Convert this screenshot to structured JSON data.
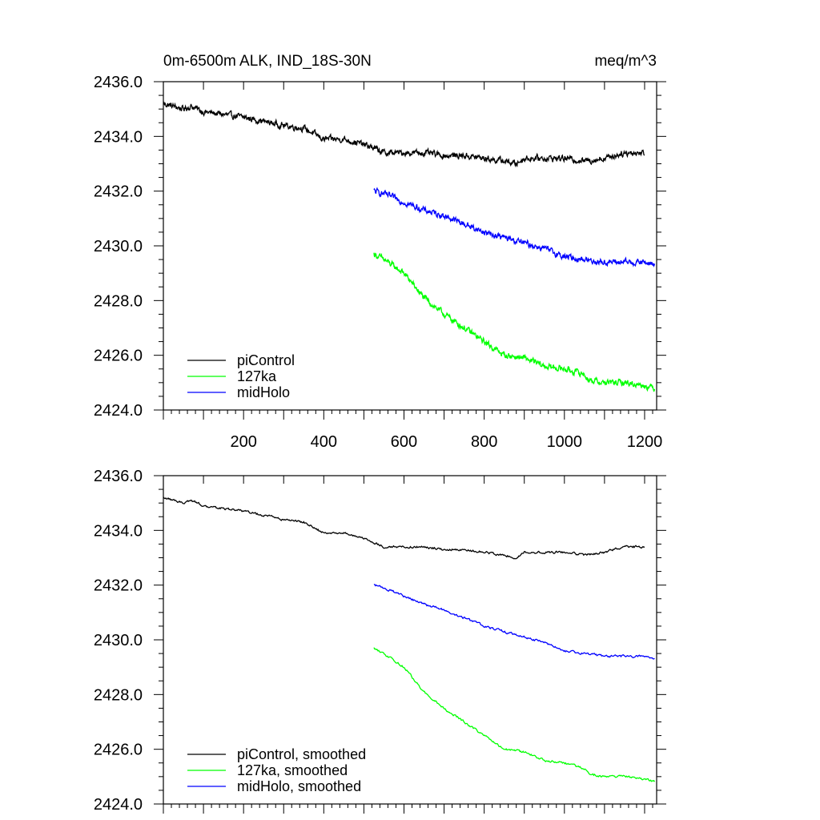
{
  "chart_data": [
    {
      "type": "line",
      "title": "0m-6500m ALK, IND_18S-30N",
      "units": "meq/m^3",
      "xlabel": "",
      "ylabel": "",
      "xlim": [
        0,
        1230
      ],
      "ylim": [
        2424.0,
        2436.0
      ],
      "xticks": [
        "200",
        "400",
        "600",
        "800",
        "1000",
        "1200"
      ],
      "yticks": [
        "2424.0",
        "2426.0",
        "2428.0",
        "2430.0",
        "2432.0",
        "2434.0",
        "2436.0"
      ],
      "grid": false,
      "legend_position": "bottom-left",
      "series": [
        {
          "name": "piControl",
          "color": "#000000",
          "x": [
            0,
            50,
            70,
            100,
            200,
            300,
            350,
            400,
            450,
            500,
            520,
            550,
            600,
            650,
            700,
            750,
            800,
            850,
            880,
            900,
            950,
            1000,
            1050,
            1100,
            1150,
            1200
          ],
          "y": [
            2435.2,
            2435.0,
            2435.1,
            2434.9,
            2434.7,
            2434.4,
            2434.3,
            2433.9,
            2433.9,
            2433.7,
            2433.6,
            2433.4,
            2433.4,
            2433.4,
            2433.3,
            2433.3,
            2433.2,
            2433.1,
            2433.0,
            2433.2,
            2433.2,
            2433.2,
            2433.1,
            2433.2,
            2433.4,
            2433.4
          ]
        },
        {
          "name": "127ka",
          "color": "#00ff00",
          "x": [
            525,
            550,
            600,
            650,
            700,
            750,
            800,
            850,
            900,
            950,
            1000,
            1050,
            1060,
            1100,
            1150,
            1200,
            1225
          ],
          "y": [
            2429.7,
            2429.5,
            2429.0,
            2428.1,
            2427.5,
            2427.0,
            2426.5,
            2426.0,
            2425.9,
            2425.6,
            2425.5,
            2425.3,
            2425.1,
            2425.0,
            2425.0,
            2424.9,
            2424.8
          ]
        },
        {
          "name": "midHolo",
          "color": "#0000ff",
          "x": [
            525,
            550,
            600,
            650,
            700,
            750,
            800,
            850,
            900,
            950,
            1000,
            1050,
            1100,
            1150,
            1200,
            1225
          ],
          "y": [
            2432.0,
            2431.9,
            2431.6,
            2431.3,
            2431.1,
            2430.8,
            2430.5,
            2430.3,
            2430.1,
            2429.9,
            2429.6,
            2429.5,
            2429.4,
            2429.4,
            2429.4,
            2429.3
          ]
        }
      ]
    },
    {
      "type": "line",
      "title": "",
      "xlabel": "",
      "ylabel": "",
      "xlim": [
        0,
        1230
      ],
      "ylim": [
        2424.0,
        2436.0
      ],
      "yticks": [
        "2424.0",
        "2426.0",
        "2428.0",
        "2430.0",
        "2432.0",
        "2434.0",
        "2436.0"
      ],
      "grid": false,
      "legend_position": "bottom-left",
      "series": [
        {
          "name": "piControl, smoothed",
          "color": "#000000",
          "x": [
            0,
            50,
            70,
            100,
            200,
            300,
            350,
            400,
            450,
            500,
            520,
            550,
            600,
            650,
            700,
            750,
            800,
            850,
            880,
            900,
            950,
            1000,
            1050,
            1100,
            1150,
            1200
          ],
          "y": [
            2435.2,
            2435.0,
            2435.1,
            2434.9,
            2434.7,
            2434.4,
            2434.3,
            2433.9,
            2433.9,
            2433.7,
            2433.6,
            2433.4,
            2433.4,
            2433.4,
            2433.3,
            2433.3,
            2433.2,
            2433.1,
            2433.0,
            2433.2,
            2433.2,
            2433.2,
            2433.1,
            2433.2,
            2433.4,
            2433.4
          ]
        },
        {
          "name": "127ka, smoothed",
          "color": "#00ff00",
          "x": [
            525,
            550,
            600,
            650,
            700,
            750,
            800,
            850,
            900,
            950,
            1000,
            1050,
            1060,
            1100,
            1150,
            1200,
            1225
          ],
          "y": [
            2429.7,
            2429.5,
            2429.0,
            2428.1,
            2427.5,
            2427.0,
            2426.5,
            2426.0,
            2425.9,
            2425.6,
            2425.5,
            2425.3,
            2425.1,
            2425.0,
            2425.0,
            2424.9,
            2424.8
          ]
        },
        {
          "name": "midHolo, smoothed",
          "color": "#0000ff",
          "x": [
            525,
            550,
            600,
            650,
            700,
            750,
            800,
            850,
            900,
            950,
            1000,
            1050,
            1100,
            1150,
            1200,
            1225
          ],
          "y": [
            2432.0,
            2431.9,
            2431.6,
            2431.3,
            2431.1,
            2430.8,
            2430.5,
            2430.3,
            2430.1,
            2429.9,
            2429.6,
            2429.5,
            2429.4,
            2429.4,
            2429.4,
            2429.3
          ]
        }
      ]
    }
  ]
}
